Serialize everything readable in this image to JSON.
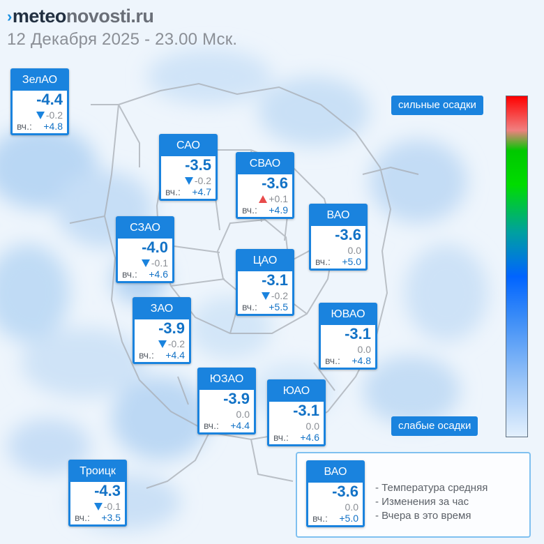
{
  "header": {
    "logo_mark": "›",
    "logo_meteo": "meteo",
    "logo_rest": "novosti.ru",
    "datetime": "12 Декабря 2025 - 23.00 Мск."
  },
  "yesterday_label": "вч.:",
  "districts": [
    {
      "name": "ЗелАО",
      "temp": "-4.4",
      "trend": "down",
      "delta": "-0.2",
      "yest": "+4.8"
    },
    {
      "name": "САО",
      "temp": "-3.5",
      "trend": "down",
      "delta": "-0.2",
      "yest": "+4.7"
    },
    {
      "name": "СВАО",
      "temp": "-3.6",
      "trend": "up",
      "delta": "+0.1",
      "yest": "+4.9"
    },
    {
      "name": "ВАО",
      "temp": "-3.6",
      "trend": "none",
      "delta": "0.0",
      "yest": "+5.0"
    },
    {
      "name": "СЗАО",
      "temp": "-4.0",
      "trend": "down",
      "delta": "-0.1",
      "yest": "+4.6"
    },
    {
      "name": "ЦАО",
      "temp": "-3.1",
      "trend": "down",
      "delta": "-0.2",
      "yest": "+5.5"
    },
    {
      "name": "ЗАО",
      "temp": "-3.9",
      "trend": "down",
      "delta": "-0.2",
      "yest": "+4.4"
    },
    {
      "name": "ЮВАО",
      "temp": "-3.1",
      "trend": "none",
      "delta": "0.0",
      "yest": "+4.8"
    },
    {
      "name": "ЮЗАО",
      "temp": "-3.9",
      "trend": "none",
      "delta": "0.0",
      "yest": "+4.4"
    },
    {
      "name": "ЮАО",
      "temp": "-3.1",
      "trend": "none",
      "delta": "0.0",
      "yest": "+4.6"
    },
    {
      "name": "Троицк",
      "temp": "-4.3",
      "trend": "down",
      "delta": "-0.1",
      "yest": "+3.5"
    }
  ],
  "scale": {
    "top_label": "сильные осадки",
    "bottom_label": "слабые осадки"
  },
  "legend": {
    "sample": {
      "name": "ВАО",
      "temp": "-3.6",
      "trend": "none",
      "delta": "0.0",
      "yest": "+5.0"
    },
    "lines": [
      "- Температура средняя",
      "- Изменения за час",
      "- Вчера в это время"
    ]
  },
  "colors": {
    "accent": "#1a83de",
    "temp_text": "#1272c6",
    "trend_down": "#1a83de",
    "trend_up": "#e84b4b"
  }
}
